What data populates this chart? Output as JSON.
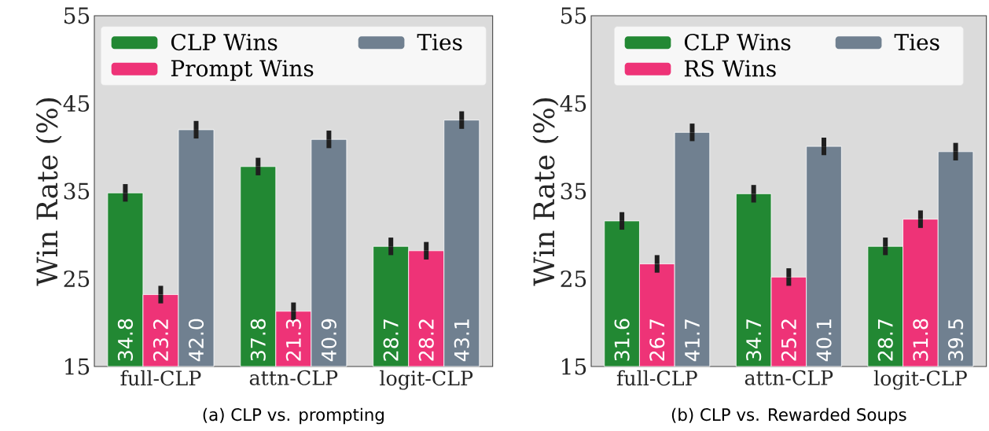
{
  "chart_data": [
    {
      "type": "bar",
      "categories": [
        "full-CLP",
        "attn-CLP",
        "logit-CLP"
      ],
      "ylabel": "Win Rate (%)",
      "ylim": [
        15,
        55
      ],
      "yticks": [
        15,
        25,
        35,
        45,
        55
      ],
      "legend": "top",
      "data_labels": true,
      "annotations": [
        "(a) CLP vs. prompting"
      ],
      "series": [
        {
          "name": "CLP Wins",
          "color": "#228833",
          "values": [
            34.8,
            37.8,
            28.7
          ],
          "value_labels": [
            "34.8",
            "37.8",
            "28.7"
          ],
          "errors": [
            1.0,
            1.0,
            1.0
          ]
        },
        {
          "name": "Prompt Wins",
          "color": "#ee3377",
          "values": [
            23.2,
            21.3,
            28.2
          ],
          "value_labels": [
            "23.2",
            "21.3",
            "28.2"
          ],
          "errors": [
            1.0,
            1.0,
            1.0
          ]
        },
        {
          "name": "Ties",
          "color": "#708090",
          "values": [
            42.0,
            40.9,
            43.1
          ],
          "value_labels": [
            "42.0",
            "40.9",
            "43.1"
          ],
          "errors": [
            1.0,
            1.0,
            1.0
          ]
        }
      ]
    },
    {
      "type": "bar",
      "categories": [
        "full-CLP",
        "attn-CLP",
        "logit-CLP"
      ],
      "ylabel": "Win Rate (%)",
      "ylim": [
        15,
        55
      ],
      "yticks": [
        15,
        25,
        35,
        45,
        55
      ],
      "legend": "top",
      "data_labels": true,
      "annotations": [
        "(b) CLP vs. Rewarded Soups"
      ],
      "series": [
        {
          "name": "CLP Wins",
          "color": "#228833",
          "values": [
            31.6,
            34.7,
            28.7
          ],
          "value_labels": [
            "31.6",
            "34.7",
            "28.7"
          ],
          "errors": [
            1.0,
            1.0,
            1.0
          ]
        },
        {
          "name": "RS Wins",
          "color": "#ee3377",
          "values": [
            26.7,
            25.2,
            31.8
          ],
          "value_labels": [
            "26.7",
            "25.2",
            "31.8"
          ],
          "errors": [
            1.0,
            1.0,
            1.0
          ]
        },
        {
          "name": "Ties",
          "color": "#708090",
          "values": [
            41.7,
            40.1,
            39.5
          ],
          "value_labels": [
            "41.7",
            "40.1",
            "39.5"
          ],
          "errors": [
            1.0,
            1.0,
            1.0
          ]
        }
      ]
    }
  ]
}
